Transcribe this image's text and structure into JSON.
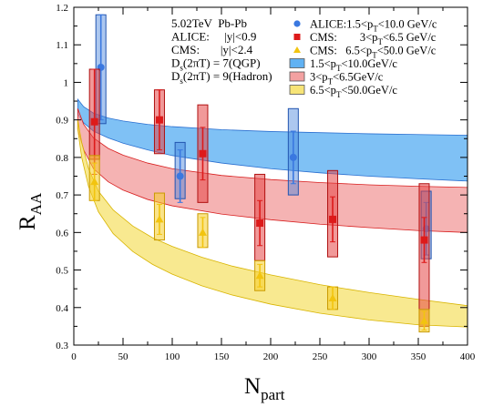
{
  "chart_data": {
    "type": "scatter",
    "xlabel": "N",
    "xlabel_sub": "part",
    "ylabel": "R",
    "ylabel_sub": "AA",
    "xlim": [
      0,
      400
    ],
    "ylim": [
      0.3,
      1.2
    ],
    "x_ticks": [
      0,
      50,
      100,
      150,
      200,
      250,
      300,
      350,
      400
    ],
    "x_tick_labels": [
      "0",
      "50",
      "100",
      "150",
      "200",
      "250",
      "300",
      "350",
      "400"
    ],
    "y_ticks": [
      0.3,
      0.4,
      0.5,
      0.6,
      0.7,
      0.8,
      0.9,
      1.0,
      1.1,
      1.2
    ],
    "y_tick_labels": [
      "0.3",
      "0.4",
      "0.5",
      "0.6",
      "0.7",
      "0.8",
      "0.9",
      "1",
      "1.1",
      "1.2"
    ],
    "info": [
      {
        "text": "5.02TeV  Pb-Pb"
      },
      {
        "text": "ALICE:     |y|<0.9"
      },
      {
        "text": "CMS:       |y|<2.4"
      },
      {
        "pre": "D",
        "sub": "s",
        "post": "(2πT) = 7(QGP)"
      },
      {
        "pre": "D",
        "sub": "s",
        "post": "(2πT) = 9(Hadron)"
      }
    ],
    "legend": [
      {
        "marker": "circle",
        "color": "#3a78e0",
        "pre": "ALICE:1.5<p",
        "sub": "T",
        "post": "<10.0 GeV/c"
      },
      {
        "marker": "square",
        "color": "#dd1a1a",
        "pre": "CMS:        3<p",
        "sub": "T",
        "post": "<6.5 GeV/c"
      },
      {
        "marker": "triangle",
        "color": "#f2c40f",
        "pre": "CMS:   6.5<p",
        "sub": "T",
        "post": "<50.0 GeV/c"
      },
      {
        "marker": "box",
        "color": "#3a9ff0",
        "pre": "1.5<p",
        "sub": "T",
        "post": "<10.0GeV/c"
      },
      {
        "marker": "box",
        "color": "#f08a8a",
        "pre": "3<p",
        "sub": "T",
        "post": "<6.5GeV/c"
      },
      {
        "marker": "box",
        "color": "#f5dd55",
        "pre": "6.5<p",
        "sub": "T",
        "post": "<50.0GeV/c"
      }
    ],
    "bands": [
      {
        "color": "#3a9ff0",
        "edge": "#2a6fd0",
        "x": [
          4,
          10,
          20,
          35,
          50,
          75,
          100,
          150,
          200,
          250,
          300,
          350,
          400
        ],
        "upper": [
          0.955,
          0.935,
          0.918,
          0.905,
          0.897,
          0.888,
          0.882,
          0.874,
          0.869,
          0.866,
          0.863,
          0.861,
          0.859
        ],
        "lower": [
          0.915,
          0.892,
          0.87,
          0.852,
          0.838,
          0.82,
          0.805,
          0.785,
          0.77,
          0.759,
          0.75,
          0.743,
          0.737
        ]
      },
      {
        "color": "#f08a8a",
        "edge": "#d81f1f",
        "x": [
          4,
          10,
          20,
          35,
          50,
          75,
          100,
          150,
          200,
          250,
          300,
          350,
          400
        ],
        "upper": [
          0.93,
          0.888,
          0.852,
          0.824,
          0.806,
          0.785,
          0.77,
          0.752,
          0.741,
          0.733,
          0.727,
          0.723,
          0.72
        ],
        "lower": [
          0.875,
          0.82,
          0.77,
          0.735,
          0.713,
          0.688,
          0.671,
          0.649,
          0.634,
          0.622,
          0.613,
          0.605,
          0.6
        ]
      },
      {
        "color": "#f5dd55",
        "edge": "#d8b400",
        "x": [
          4,
          8,
          15,
          25,
          40,
          60,
          80,
          100,
          130,
          160,
          200,
          250,
          300,
          350,
          400
        ],
        "upper": [
          0.9,
          0.84,
          0.77,
          0.71,
          0.66,
          0.617,
          0.586,
          0.563,
          0.534,
          0.511,
          0.487,
          0.461,
          0.44,
          0.422,
          0.405
        ],
        "lower": [
          0.875,
          0.8,
          0.722,
          0.655,
          0.597,
          0.549,
          0.515,
          0.489,
          0.458,
          0.434,
          0.409,
          0.385,
          0.367,
          0.354,
          0.348
        ]
      }
    ],
    "series": [
      {
        "name": "ALICE:1.5<pT<10.0 GeV/c",
        "marker": "circle",
        "color": "#3a78e0",
        "fill": "rgba(70,130,220,0.45)",
        "edge": "#2255b0",
        "x": [
          27.5,
          108,
          223,
          358
        ],
        "y": [
          1.04,
          0.75,
          0.8,
          0.61
        ],
        "stat": [
          0.14,
          0.07,
          0.07,
          0.07
        ],
        "sys_lo": [
          0.15,
          0.06,
          0.1,
          0.08
        ],
        "sys_hi": [
          0.14,
          0.09,
          0.13,
          0.1
        ]
      },
      {
        "name": "CMS: 3<pT<6.5 GeV/c",
        "marker": "square",
        "color": "#dd1a1a",
        "fill": "rgba(230,70,70,0.55)",
        "edge": "#b01010",
        "x": [
          21,
          87,
          131,
          189,
          263,
          356
        ],
        "y": [
          0.895,
          0.9,
          0.81,
          0.625,
          0.635,
          0.58
        ],
        "stat": [
          0.14,
          0.08,
          0.07,
          0.06,
          0.06,
          0.06
        ],
        "sys_lo": [
          0.1,
          0.09,
          0.13,
          0.1,
          0.1,
          0.23
        ],
        "sys_hi": [
          0.14,
          0.08,
          0.13,
          0.13,
          0.13,
          0.15
        ]
      },
      {
        "name": "CMS: 6.5<pT<50.0 GeV/c",
        "marker": "triangle",
        "color": "#f2c40f",
        "fill": "rgba(245,205,40,0.55)",
        "edge": "#c99a00",
        "x": [
          21,
          87,
          131,
          189,
          263,
          356
        ],
        "y": [
          0.735,
          0.635,
          0.6,
          0.485,
          0.425,
          0.365
        ],
        "stat": [
          0.05,
          0.04,
          0.04,
          0.03,
          0.03,
          0.025
        ],
        "sys_lo": [
          0.05,
          0.055,
          0.04,
          0.04,
          0.03,
          0.03
        ],
        "sys_hi": [
          0.07,
          0.07,
          0.05,
          0.04,
          0.03,
          0.03
        ]
      }
    ]
  }
}
